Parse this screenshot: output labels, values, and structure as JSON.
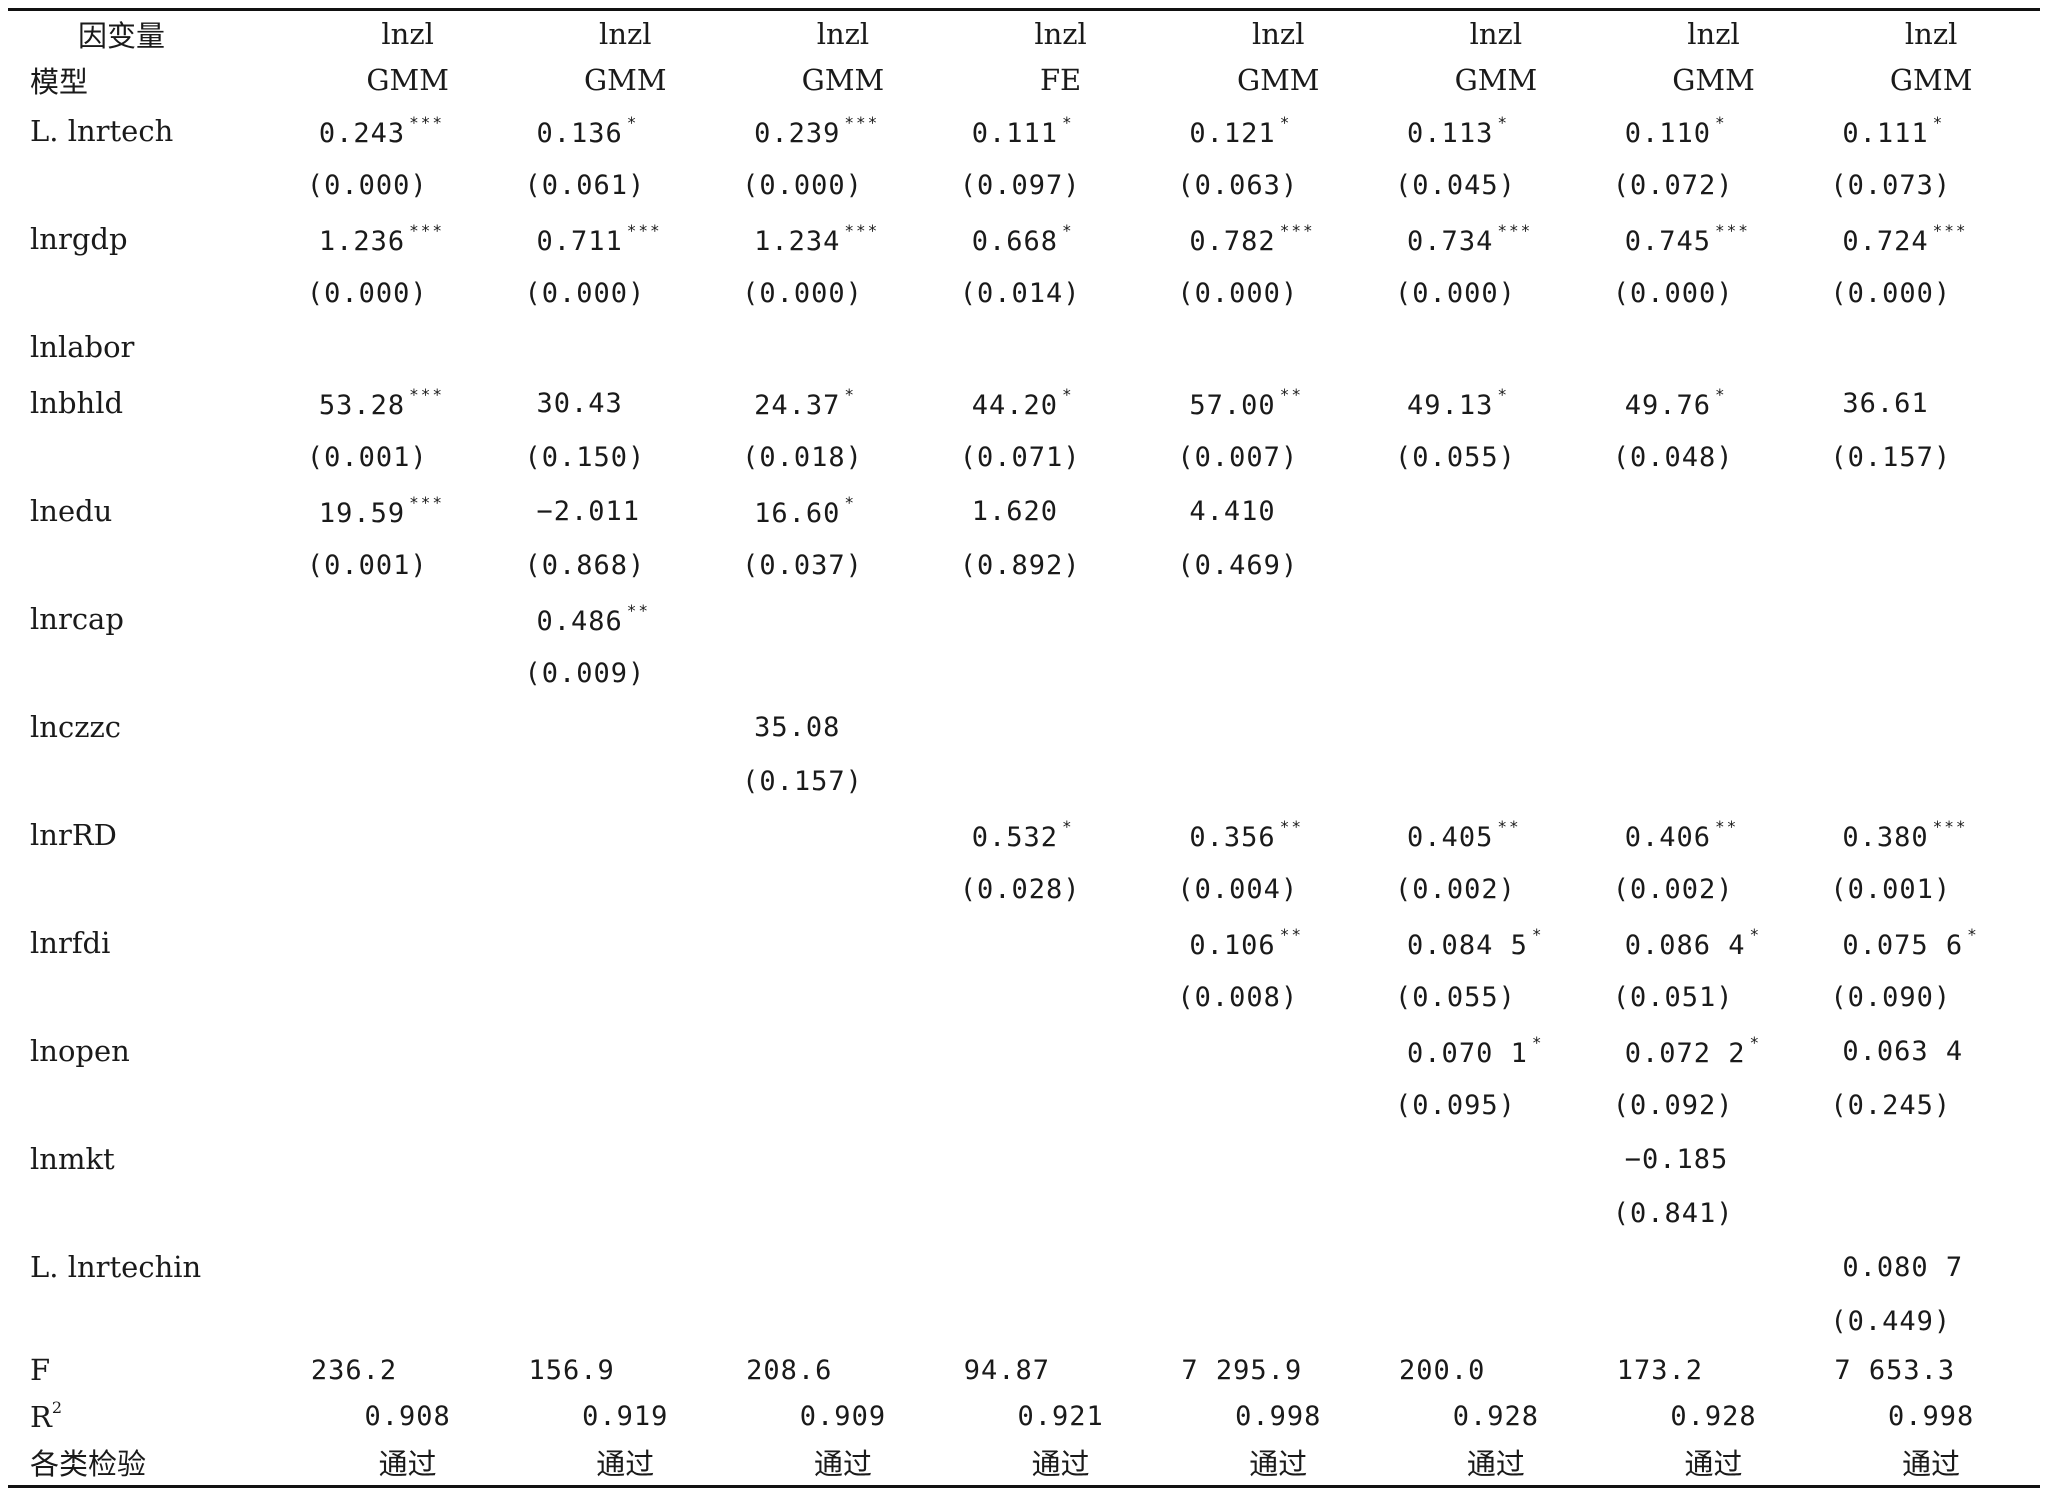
{
  "header": {
    "dep_label": "因变量",
    "dep_values": [
      "lnzl",
      "lnzl",
      "lnzl",
      "lnzl",
      "lnzl",
      "lnzl",
      "lnzl",
      "lnzl"
    ],
    "model_label": "模型",
    "model_values": [
      "GMM",
      "GMM",
      "GMM",
      "FE",
      "GMM",
      "GMM",
      "GMM",
      "GMM"
    ]
  },
  "rows": [
    {
      "name": "L. lnrtech",
      "coefs": [
        {
          "v": "0.243",
          "s": "***"
        },
        {
          "v": "0.136",
          "s": "*"
        },
        {
          "v": "0.239",
          "s": "***"
        },
        {
          "v": "0.111",
          "s": "*"
        },
        {
          "v": "0.121",
          "s": "*"
        },
        {
          "v": "0.113",
          "s": "*"
        },
        {
          "v": "0.110",
          "s": "*"
        },
        {
          "v": "0.111",
          "s": "*"
        }
      ],
      "pvals": [
        "(0.000)",
        "(0.061)",
        "(0.000)",
        "(0.097)",
        "(0.063)",
        "(0.045)",
        "(0.072)",
        "(0.073)"
      ]
    },
    {
      "name": "lnrgdp",
      "coefs": [
        {
          "v": "1.236",
          "s": "***"
        },
        {
          "v": "0.711",
          "s": "***"
        },
        {
          "v": "1.234",
          "s": "***"
        },
        {
          "v": "0.668",
          "s": "*"
        },
        {
          "v": "0.782",
          "s": "***"
        },
        {
          "v": "0.734",
          "s": "***"
        },
        {
          "v": "0.745",
          "s": "***"
        },
        {
          "v": "0.724",
          "s": "***"
        }
      ],
      "pvals": [
        "(0.000)",
        "(0.000)",
        "(0.000)",
        "(0.014)",
        "(0.000)",
        "(0.000)",
        "(0.000)",
        "(0.000)"
      ]
    },
    {
      "name": "lnlabor",
      "coefs": [
        {
          "v": "",
          "s": ""
        },
        {
          "v": "",
          "s": ""
        },
        {
          "v": "",
          "s": ""
        },
        {
          "v": "",
          "s": ""
        },
        {
          "v": "",
          "s": ""
        },
        {
          "v": "",
          "s": ""
        },
        {
          "v": "",
          "s": ""
        },
        {
          "v": "",
          "s": ""
        }
      ],
      "pvals": null
    },
    {
      "name": "lnbhld",
      "coefs": [
        {
          "v": "53.28",
          "s": "***"
        },
        {
          "v": "30.43",
          "s": ""
        },
        {
          "v": "24.37",
          "s": "*"
        },
        {
          "v": "44.20",
          "s": "*"
        },
        {
          "v": "57.00",
          "s": "**"
        },
        {
          "v": "49.13",
          "s": "*"
        },
        {
          "v": "49.76",
          "s": "*"
        },
        {
          "v": "36.61",
          "s": ""
        }
      ],
      "pvals": [
        "(0.001)",
        "(0.150)",
        "(0.018)",
        "(0.071)",
        "(0.007)",
        "(0.055)",
        "(0.048)",
        "(0.157)"
      ]
    },
    {
      "name": "lnedu",
      "coefs": [
        {
          "v": "19.59",
          "s": "***"
        },
        {
          "v": "−2.011",
          "s": ""
        },
        {
          "v": "16.60",
          "s": "*"
        },
        {
          "v": "1.620",
          "s": ""
        },
        {
          "v": "4.410",
          "s": ""
        },
        {
          "v": "",
          "s": ""
        },
        {
          "v": "",
          "s": ""
        },
        {
          "v": "",
          "s": ""
        }
      ],
      "pvals": [
        "(0.001)",
        "(0.868)",
        "(0.037)",
        "(0.892)",
        "(0.469)",
        "",
        "",
        ""
      ]
    },
    {
      "name": "lnrcap",
      "coefs": [
        {
          "v": "",
          "s": ""
        },
        {
          "v": "0.486",
          "s": "**"
        },
        {
          "v": "",
          "s": ""
        },
        {
          "v": "",
          "s": ""
        },
        {
          "v": "",
          "s": ""
        },
        {
          "v": "",
          "s": ""
        },
        {
          "v": "",
          "s": ""
        },
        {
          "v": "",
          "s": ""
        }
      ],
      "pvals": [
        "",
        "(0.009)",
        "",
        "",
        "",
        "",
        "",
        ""
      ]
    },
    {
      "name": "lnczzc",
      "coefs": [
        {
          "v": "",
          "s": ""
        },
        {
          "v": "",
          "s": ""
        },
        {
          "v": "35.08",
          "s": ""
        },
        {
          "v": "",
          "s": ""
        },
        {
          "v": "",
          "s": ""
        },
        {
          "v": "",
          "s": ""
        },
        {
          "v": "",
          "s": ""
        },
        {
          "v": "",
          "s": ""
        }
      ],
      "pvals": [
        "",
        "",
        "(0.157)",
        "",
        "",
        "",
        "",
        ""
      ]
    },
    {
      "name": "lnrRD",
      "coefs": [
        {
          "v": "",
          "s": ""
        },
        {
          "v": "",
          "s": ""
        },
        {
          "v": "",
          "s": ""
        },
        {
          "v": "0.532",
          "s": "*"
        },
        {
          "v": "0.356",
          "s": "**"
        },
        {
          "v": "0.405",
          "s": "**"
        },
        {
          "v": "0.406",
          "s": "**"
        },
        {
          "v": "0.380",
          "s": "***"
        }
      ],
      "pvals": [
        "",
        "",
        "",
        "(0.028)",
        "(0.004)",
        "(0.002)",
        "(0.002)",
        "(0.001)"
      ]
    },
    {
      "name": "lnrfdi",
      "coefs": [
        {
          "v": "",
          "s": ""
        },
        {
          "v": "",
          "s": ""
        },
        {
          "v": "",
          "s": ""
        },
        {
          "v": "",
          "s": ""
        },
        {
          "v": "0.106",
          "s": "**"
        },
        {
          "v": "0.084 5",
          "s": "*"
        },
        {
          "v": "0.086 4",
          "s": "*"
        },
        {
          "v": "0.075 6",
          "s": "*"
        }
      ],
      "pvals": [
        "",
        "",
        "",
        "",
        "(0.008)",
        "(0.055)",
        "(0.051)",
        "(0.090)"
      ]
    },
    {
      "name": "lnopen",
      "coefs": [
        {
          "v": "",
          "s": ""
        },
        {
          "v": "",
          "s": ""
        },
        {
          "v": "",
          "s": ""
        },
        {
          "v": "",
          "s": ""
        },
        {
          "v": "",
          "s": ""
        },
        {
          "v": "0.070 1",
          "s": "*"
        },
        {
          "v": "0.072 2",
          "s": "*"
        },
        {
          "v": "0.063 4",
          "s": ""
        }
      ],
      "pvals": [
        "",
        "",
        "",
        "",
        "",
        "(0.095)",
        "(0.092)",
        "(0.245)"
      ]
    },
    {
      "name": "lnmkt",
      "coefs": [
        {
          "v": "",
          "s": ""
        },
        {
          "v": "",
          "s": ""
        },
        {
          "v": "",
          "s": ""
        },
        {
          "v": "",
          "s": ""
        },
        {
          "v": "",
          "s": ""
        },
        {
          "v": "",
          "s": ""
        },
        {
          "v": "−0.185",
          "s": ""
        },
        {
          "v": "",
          "s": ""
        }
      ],
      "pvals": [
        "",
        "",
        "",
        "",
        "",
        "",
        "(0.841)",
        ""
      ]
    },
    {
      "name": "L. lnrtechin",
      "coefs": [
        {
          "v": "",
          "s": ""
        },
        {
          "v": "",
          "s": ""
        },
        {
          "v": "",
          "s": ""
        },
        {
          "v": "",
          "s": ""
        },
        {
          "v": "",
          "s": ""
        },
        {
          "v": "",
          "s": ""
        },
        {
          "v": "",
          "s": ""
        },
        {
          "v": "0.080 7",
          "s": ""
        }
      ],
      "pvals": [
        "",
        "",
        "",
        "",
        "",
        "",
        "",
        "(0.449)"
      ]
    }
  ],
  "stats": [
    {
      "name": "F",
      "values": [
        "236.2",
        "156.9",
        "208.6",
        "94.87",
        "7 295.9",
        "200.0",
        "173.2",
        "7 653.3"
      ],
      "align": "left"
    },
    {
      "name": "R",
      "sup": "2",
      "values": [
        "0.908",
        "0.919",
        "0.909",
        "0.921",
        "0.998",
        "0.928",
        "0.928",
        "0.998"
      ],
      "align": "center"
    },
    {
      "name": "各类检验",
      "values": [
        "通过",
        "通过",
        "通过",
        "通过",
        "通过",
        "通过",
        "通过",
        "通过"
      ],
      "align": "center"
    }
  ]
}
